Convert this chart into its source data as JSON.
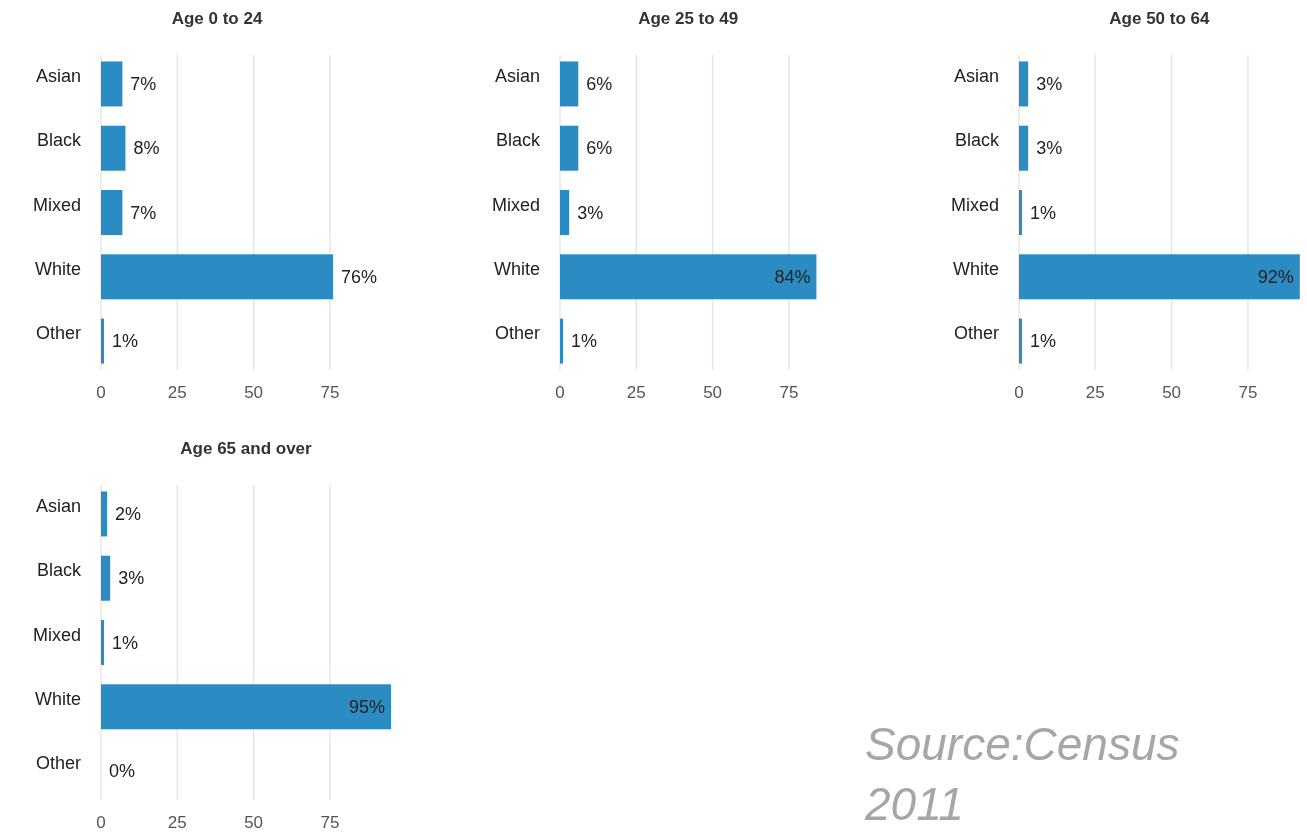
{
  "chart_data": [
    {
      "type": "bar",
      "orientation": "horizontal",
      "title": "Age 0 to 24",
      "categories": [
        "Asian",
        "Black",
        "Mixed",
        "White",
        "Other"
      ],
      "values": [
        7,
        8,
        7,
        76,
        1
      ],
      "value_labels": [
        "7%",
        "8%",
        "7%",
        "76%",
        "1%"
      ],
      "color": "#2b8cc4",
      "xlim": [
        0,
        76
      ],
      "xticks": [
        0,
        25,
        50,
        75
      ],
      "grid": "x"
    },
    {
      "type": "bar",
      "orientation": "horizontal",
      "title": "Age 25 to 49",
      "categories": [
        "Asian",
        "Black",
        "Mixed",
        "White",
        "Other"
      ],
      "values": [
        6,
        6,
        3,
        84,
        1
      ],
      "value_labels": [
        "6%",
        "6%",
        "3%",
        "84%",
        "1%"
      ],
      "color": "#2b8cc4",
      "xlim": [
        0,
        84
      ],
      "xticks": [
        0,
        25,
        50,
        75
      ],
      "grid": "x"
    },
    {
      "type": "bar",
      "orientation": "horizontal",
      "title": "Age 50 to 64",
      "categories": [
        "Asian",
        "Black",
        "Mixed",
        "White",
        "Other"
      ],
      "values": [
        3,
        3,
        1,
        92,
        1
      ],
      "value_labels": [
        "3%",
        "3%",
        "1%",
        "92%",
        "1%"
      ],
      "color": "#2b8cc4",
      "xlim": [
        0,
        92
      ],
      "xticks": [
        0,
        25,
        50,
        75
      ],
      "grid": "x"
    },
    {
      "type": "bar",
      "orientation": "horizontal",
      "title": "Age 65 and over",
      "categories": [
        "Asian",
        "Black",
        "Mixed",
        "White",
        "Other"
      ],
      "values": [
        2,
        3,
        1,
        95,
        0
      ],
      "value_labels": [
        "2%",
        "3%",
        "1%",
        "95%",
        "0%"
      ],
      "color": "#2b8cc4",
      "xlim": [
        0,
        95
      ],
      "xticks": [
        0,
        25,
        50,
        75
      ],
      "grid": "x",
      "annotations": [
        "Source:Census 2011"
      ]
    }
  ]
}
